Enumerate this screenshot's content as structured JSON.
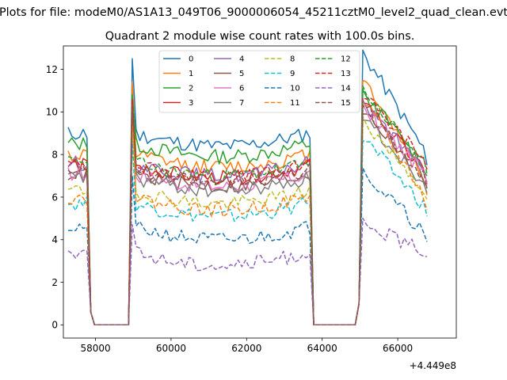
{
  "chart_data": {
    "type": "line",
    "suptitle": "Plots for file: modeM0/AS1A13_049T06_9000006054_45211cztM0_level2_quad_clean.evt",
    "title": "Quadrant 2 module wise count rates with 100.0s bins.",
    "xlabel": "",
    "ylabel": "",
    "x_offset_label": "+4.449e8",
    "xlim": [
      57150,
      67550
    ],
    "ylim": [
      -0.62,
      13.1
    ],
    "xticks": [
      58000,
      60000,
      62000,
      64000,
      66000
    ],
    "xtick_labels": [
      "58000",
      "60000",
      "62000",
      "64000",
      "66000"
    ],
    "yticks": [
      0,
      2,
      4,
      6,
      8,
      10,
      12
    ],
    "ytick_labels": [
      "0",
      "2",
      "4",
      "6",
      "8",
      "10",
      "12"
    ],
    "grid": false,
    "legend_position": "top-center",
    "legend_columns": 4,
    "x_start": 57275,
    "x_step": 100,
    "segments": [
      [
        57275,
        57775,
        65
      ],
      [
        57875,
        58775,
        10
      ],
      [
        58975,
        63675,
        48
      ],
      [
        63775,
        64875,
        10
      ],
      [
        65175,
        66775,
        65
      ]
    ],
    "series": [
      {
        "name": "0",
        "color": "#1f77b4",
        "style": "solid",
        "level": 9.0,
        "peak": 12.5,
        "drop": 7.5,
        "seed": 11
      },
      {
        "name": "1",
        "color": "#ff7f0e",
        "style": "solid",
        "level": 8.0,
        "peak": 11.4,
        "drop": 6.1,
        "seed": 12
      },
      {
        "name": "2",
        "color": "#2ca02c",
        "style": "solid",
        "level": 8.5,
        "peak": 10.7,
        "drop": 7.0,
        "seed": 13
      },
      {
        "name": "3",
        "color": "#d62728",
        "style": "solid",
        "level": 7.5,
        "peak": 10.4,
        "drop": 6.6,
        "seed": 14
      },
      {
        "name": "4",
        "color": "#9467bd",
        "style": "solid",
        "level": 7.6,
        "peak": 10.2,
        "drop": 6.7,
        "seed": 15
      },
      {
        "name": "5",
        "color": "#8c564b",
        "style": "solid",
        "level": 7.1,
        "peak": 9.9,
        "drop": 6.5,
        "seed": 16
      },
      {
        "name": "6",
        "color": "#e377c2",
        "style": "solid",
        "level": 7.1,
        "peak": 10.0,
        "drop": 6.6,
        "seed": 17
      },
      {
        "name": "7",
        "color": "#7f7f7f",
        "style": "solid",
        "level": 6.9,
        "peak": 9.6,
        "drop": 6.2,
        "seed": 18
      },
      {
        "name": "8",
        "color": "#bcbd22",
        "style": "dashed",
        "level": 6.3,
        "peak": 9.4,
        "drop": 5.9,
        "seed": 19
      },
      {
        "name": "9",
        "color": "#17becf",
        "style": "dashed",
        "level": 5.7,
        "peak": 8.6,
        "drop": 5.1,
        "seed": 20
      },
      {
        "name": "10",
        "color": "#1f77b4",
        "style": "dashed",
        "level": 4.6,
        "peak": 7.0,
        "drop": 3.9,
        "seed": 21
      },
      {
        "name": "11",
        "color": "#ff7f0e",
        "style": "dashed",
        "level": 6.0,
        "peak": 10.3,
        "drop": 5.4,
        "seed": 22
      },
      {
        "name": "12",
        "color": "#2ca02c",
        "style": "dashed",
        "level": 7.6,
        "peak": 10.8,
        "drop": 7.1,
        "seed": 23
      },
      {
        "name": "13",
        "color": "#d62728",
        "style": "dashed",
        "level": 7.5,
        "peak": 10.6,
        "drop": 7.3,
        "seed": 24
      },
      {
        "name": "14",
        "color": "#9467bd",
        "style": "dashed",
        "level": 3.4,
        "peak": 4.7,
        "drop": 3.2,
        "seed": 25
      },
      {
        "name": "15",
        "color": "#8c564b",
        "style": "dashed",
        "level": 7.3,
        "peak": 10.2,
        "drop": 6.4,
        "seed": 26
      }
    ]
  }
}
